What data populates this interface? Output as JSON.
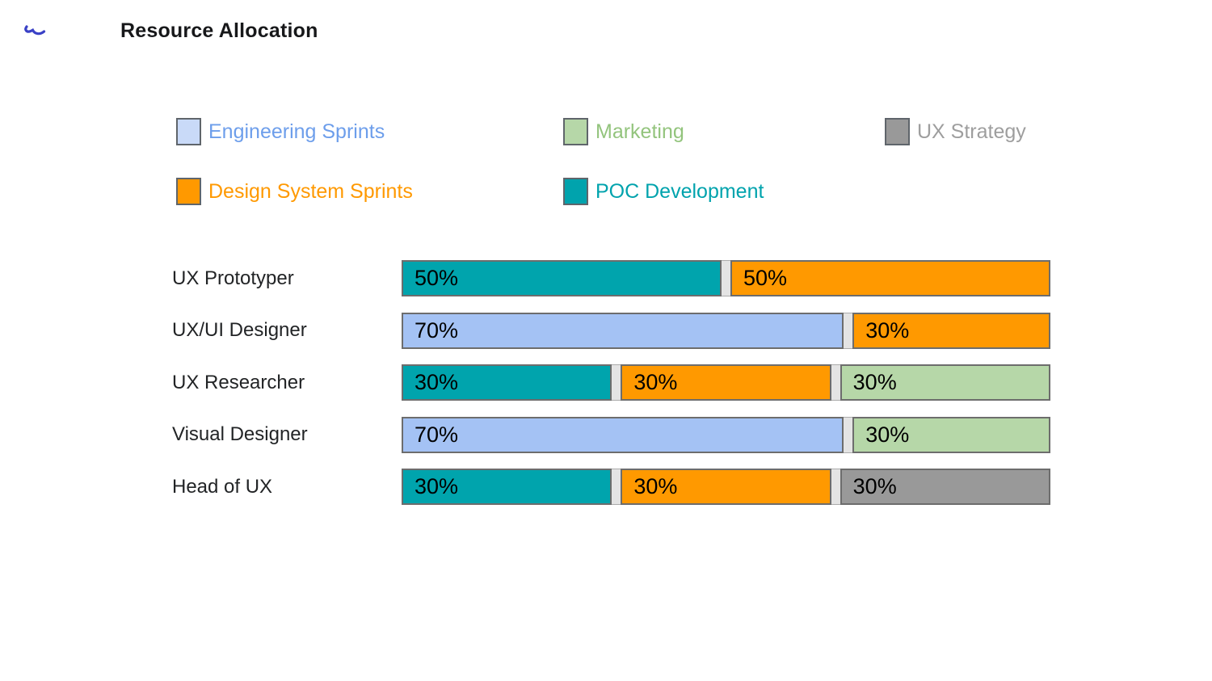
{
  "header": {
    "title": "Resource Allocation",
    "logo": {
      "icon": "squiggle-logo-icon",
      "color": "#3a41c6"
    }
  },
  "legend": {
    "items": [
      {
        "label": "Engineering Sprints",
        "swatch_color": "#c9daf8",
        "text_color": "#6d9eeb"
      },
      {
        "label": "Marketing",
        "swatch_color": "#b6d7a8",
        "text_color": "#93c47d"
      },
      {
        "label": "UX Strategy",
        "swatch_color": "#999999",
        "text_color": "#9e9e9e"
      },
      {
        "label": "Design System Sprints",
        "swatch_color": "#ff9900",
        "text_color": "#ff9900"
      },
      {
        "label": "POC Development",
        "swatch_color": "#00a3ad",
        "text_color": "#00a3ad"
      }
    ]
  },
  "chart_data": {
    "type": "bar",
    "orientation": "horizontal_stacked",
    "title": "Resource Allocation",
    "unit": "%",
    "xlim": [
      0,
      100
    ],
    "grid": false,
    "legend_position": "top",
    "categories": [
      "UX Prototyper",
      "UX/UI Designer",
      "UX Researcher",
      "Visual Designer",
      "Head of UX"
    ],
    "series_names": [
      "Engineering Sprints",
      "Design System Sprints",
      "Marketing",
      "POC Development",
      "UX Strategy"
    ],
    "series_colors": {
      "Engineering Sprints": "#a4c2f4",
      "Design System Sprints": "#ff9900",
      "Marketing": "#b6d7a8",
      "POC Development": "#00a4ad",
      "UX Strategy": "#999999"
    },
    "rows": [
      {
        "label": "UX Prototyper",
        "segments": [
          {
            "series": "POC Development",
            "value": 50,
            "text": "50%"
          },
          {
            "series": "Design System Sprints",
            "value": 50,
            "text": "50%"
          }
        ]
      },
      {
        "label": "UX/UI Designer",
        "segments": [
          {
            "series": "Engineering Sprints",
            "value": 70,
            "text": "70%"
          },
          {
            "series": "Design System Sprints",
            "value": 30,
            "text": "30%"
          }
        ]
      },
      {
        "label": "UX Researcher",
        "segments": [
          {
            "series": "POC Development",
            "value": 30,
            "text": "30%"
          },
          {
            "series": "Design System Sprints",
            "value": 30,
            "text": "30%"
          },
          {
            "series": "Marketing",
            "value": 30,
            "text": "30%"
          }
        ]
      },
      {
        "label": "Visual Designer",
        "segments": [
          {
            "series": "Engineering Sprints",
            "value": 70,
            "text": "70%"
          },
          {
            "series": "Marketing",
            "value": 30,
            "text": "30%"
          }
        ]
      },
      {
        "label": "Head of UX",
        "segments": [
          {
            "series": "POC Development",
            "value": 30,
            "text": "30%"
          },
          {
            "series": "Design System Sprints",
            "value": 30,
            "text": "30%"
          },
          {
            "series": "UX Strategy",
            "value": 30,
            "text": "30%"
          }
        ]
      }
    ]
  }
}
